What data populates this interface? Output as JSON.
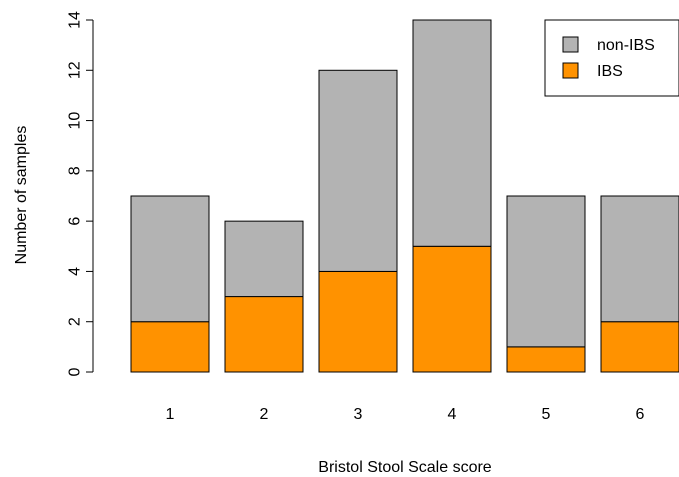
{
  "chart_data": {
    "type": "bar",
    "stacked": true,
    "categories": [
      "1",
      "2",
      "3",
      "4",
      "5",
      "6"
    ],
    "series": [
      {
        "name": "IBS",
        "values": [
          2,
          3,
          4,
          5,
          1,
          2
        ],
        "color": "#FF9200"
      },
      {
        "name": "non-IBS",
        "values": [
          5,
          3,
          8,
          9,
          6,
          5
        ],
        "color": "#B3B3B3"
      }
    ],
    "totals": [
      7,
      6,
      12,
      14,
      7,
      7
    ],
    "xlabel": "Bristol Stool Scale score",
    "ylabel": "Number of samples",
    "ylim": [
      0,
      14
    ],
    "yticks": [
      "0",
      "2",
      "4",
      "6",
      "8",
      "10",
      "12",
      "14"
    ],
    "grid": false,
    "legend": {
      "placement": "top-right",
      "entries": [
        {
          "label": "non-IBS",
          "color": "#B3B3B3"
        },
        {
          "label": "IBS",
          "color": "#FF9200"
        }
      ]
    }
  }
}
